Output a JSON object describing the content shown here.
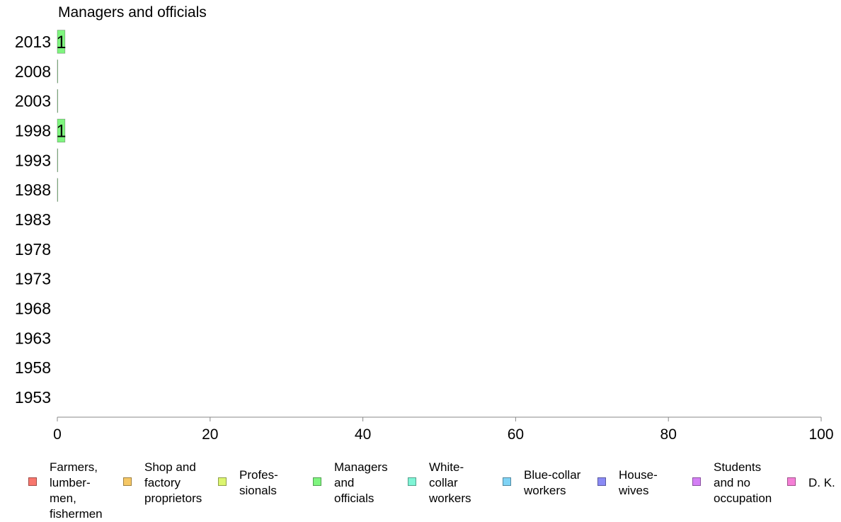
{
  "chart_data": {
    "type": "bar",
    "orientation": "horizontal",
    "stacked": true,
    "title": "Managers and officials",
    "xlabel": "",
    "ylabel": "",
    "xlim": [
      0,
      100
    ],
    "x_ticks": [
      0,
      20,
      40,
      60,
      80,
      100
    ],
    "grid": false,
    "legend_position": "bottom",
    "categories": [
      "2013",
      "2008",
      "2003",
      "1998",
      "1993",
      "1988",
      "1983",
      "1978",
      "1973",
      "1968",
      "1963",
      "1958",
      "1953"
    ],
    "series": [
      {
        "name": "Farmers, lumber-\nmen,\nfishermen",
        "color": "#f8766d",
        "values": [
          null,
          null,
          null,
          null,
          null,
          null,
          null,
          null,
          null,
          null,
          null,
          null,
          null
        ]
      },
      {
        "name": "Shop and\nfactory\nproprietors",
        "color": "#f5c765",
        "values": [
          null,
          null,
          null,
          null,
          null,
          null,
          null,
          null,
          null,
          null,
          null,
          null,
          null
        ]
      },
      {
        "name": "Profes-\nsionals",
        "color": "#dcf56f",
        "values": [
          null,
          null,
          null,
          null,
          null,
          null,
          null,
          null,
          null,
          null,
          null,
          null,
          null
        ]
      },
      {
        "name": "Managers\nand\nofficials",
        "color": "#7ff57f",
        "values": [
          1,
          0,
          0,
          1,
          0,
          0,
          null,
          null,
          null,
          null,
          null,
          null,
          null
        ],
        "labels": [
          "1",
          "",
          "",
          "1",
          "",
          "",
          "",
          "",
          "",
          "",
          "",
          "",
          ""
        ]
      },
      {
        "name": "White-\ncollar\nworkers",
        "color": "#7ff5d6",
        "values": [
          null,
          null,
          null,
          null,
          null,
          null,
          null,
          null,
          null,
          null,
          null,
          null,
          null
        ]
      },
      {
        "name": "Blue-collar\nworkers",
        "color": "#7fd3f5",
        "values": [
          null,
          null,
          null,
          null,
          null,
          null,
          null,
          null,
          null,
          null,
          null,
          null,
          null
        ]
      },
      {
        "name": "House-\nwives",
        "color": "#8a8af5",
        "values": [
          null,
          null,
          null,
          null,
          null,
          null,
          null,
          null,
          null,
          null,
          null,
          null,
          null
        ]
      },
      {
        "name": "Students\nand no\noccupation",
        "color": "#d47ff5",
        "values": [
          null,
          null,
          null,
          null,
          null,
          null,
          null,
          null,
          null,
          null,
          null,
          null,
          null
        ]
      },
      {
        "name": "D. K.",
        "color": "#f57fd6",
        "values": [
          null,
          null,
          null,
          null,
          null,
          null,
          null,
          null,
          null,
          null,
          null,
          null,
          null
        ]
      }
    ]
  }
}
